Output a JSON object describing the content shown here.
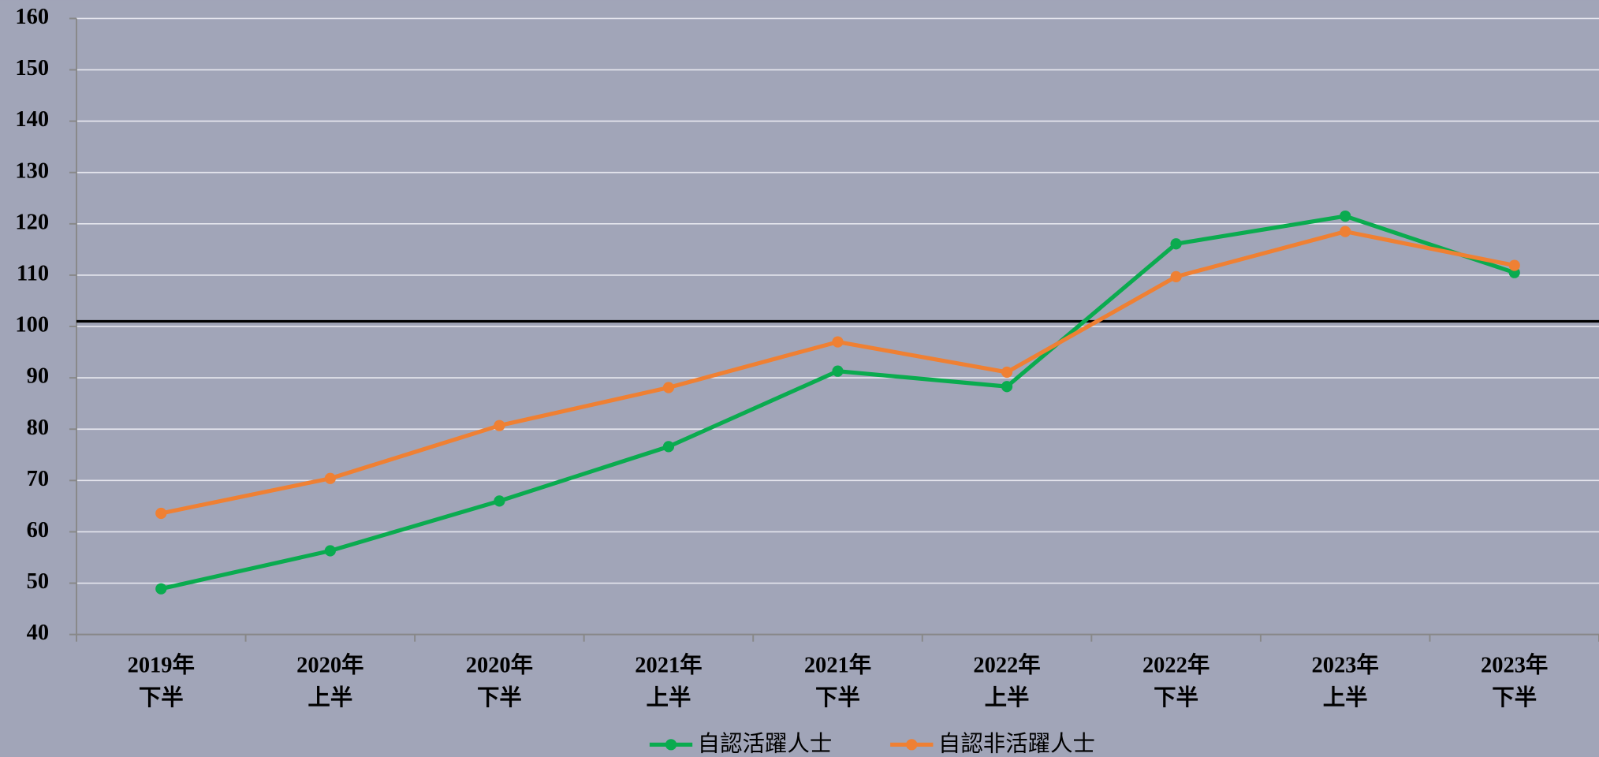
{
  "chart_data": {
    "type": "line",
    "categories": [
      [
        "2019年",
        "下半"
      ],
      [
        "2020年",
        "上半"
      ],
      [
        "2020年",
        "下半"
      ],
      [
        "2021年",
        "上半"
      ],
      [
        "2021年",
        "下半"
      ],
      [
        "2022年",
        "上半"
      ],
      [
        "2022年",
        "下半"
      ],
      [
        "2023年",
        "上半"
      ],
      [
        "2023年",
        "下半"
      ]
    ],
    "series": [
      {
        "name": "自認活躍人士",
        "color": "#0aab4f",
        "values": [
          48.9,
          56.3,
          66,
          76.6,
          91.3,
          88.3,
          116.1,
          121.5,
          110.5
        ]
      },
      {
        "name": "自認非活躍人士",
        "color": "#ef8033",
        "values": [
          63.6,
          70.4,
          80.7,
          88.1,
          97,
          91.1,
          109.7,
          118.5,
          111.9
        ]
      }
    ],
    "reference_line": 101,
    "ylim": [
      40,
      160
    ],
    "yticks": [
      40,
      50,
      60,
      70,
      80,
      90,
      100,
      110,
      120,
      130,
      140,
      150,
      160
    ],
    "grid": true,
    "legend": "bottom"
  }
}
